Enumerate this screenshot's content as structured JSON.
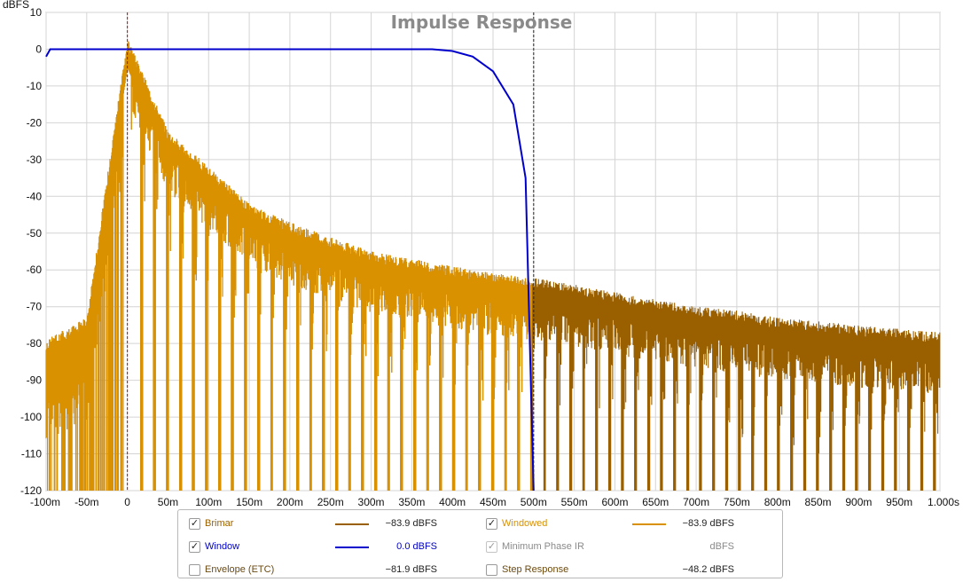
{
  "chart_data": {
    "type": "line",
    "title": "Impulse Response",
    "ylabel": "dBFS",
    "ylim": [
      -120,
      10
    ],
    "xlim": [
      -0.1,
      1.0
    ],
    "y_ticks": [
      "10",
      "0",
      "-10",
      "-20",
      "-30",
      "-40",
      "-50",
      "-60",
      "-70",
      "-80",
      "-90",
      "-100",
      "-110",
      "-120"
    ],
    "x_ticks": [
      "-100m",
      "-50m",
      "0",
      "50m",
      "100m",
      "150m",
      "200m",
      "250m",
      "300m",
      "350m",
      "400m",
      "450m",
      "500m",
      "550m",
      "600m",
      "650m",
      "700m",
      "750m",
      "800m",
      "850m",
      "900m",
      "950m",
      "1.000s"
    ],
    "grid": true,
    "markers": [
      {
        "x": 0.0,
        "color": "#cc0000",
        "style": "dashed"
      },
      {
        "x": 0.5,
        "color": "#222222",
        "style": "dashed"
      }
    ],
    "series": [
      {
        "name": "Brimar",
        "color": "#9a6000",
        "x": [
          -0.1,
          -0.05,
          0.0,
          0.05,
          0.1,
          0.15,
          0.2,
          0.25,
          0.3,
          0.35,
          0.4,
          0.45,
          0.5,
          0.55,
          0.6,
          0.65,
          0.7,
          0.75,
          0.8,
          0.85,
          0.9,
          0.95,
          1.0
        ],
        "values": [
          -82,
          -76,
          0,
          -25,
          -35,
          -45,
          -50,
          -54,
          -58,
          -60,
          -62,
          -64,
          -65,
          -67,
          -69,
          -71,
          -73,
          -74,
          -76,
          -77,
          -78,
          -79,
          -80
        ]
      },
      {
        "name": "Windowed",
        "color": "#d99100",
        "x": [
          -0.1,
          -0.05,
          0.0,
          0.05,
          0.1,
          0.15,
          0.2,
          0.25,
          0.3,
          0.35,
          0.4,
          0.45,
          0.5
        ],
        "values": [
          -82,
          -76,
          0,
          -25,
          -35,
          -45,
          -50,
          -54,
          -58,
          -60,
          -62,
          -64,
          -65
        ]
      },
      {
        "name": "Window",
        "color": "#0000cc",
        "x": [
          -0.1,
          -0.095,
          -0.09,
          0.0,
          0.1,
          0.2,
          0.3,
          0.375,
          0.4,
          0.425,
          0.45,
          0.475,
          0.49,
          0.5
        ],
        "values": [
          -2,
          0,
          0,
          0,
          0,
          0,
          0,
          0,
          -0.5,
          -2,
          -6,
          -15,
          -35,
          -120
        ]
      }
    ]
  },
  "legend": {
    "rows": [
      {
        "left": {
          "checked": true,
          "label": "Brimar",
          "label_color": "#9a6000",
          "line_color": "#9a6000",
          "value": "−83.9 dBFS",
          "disabled": false
        },
        "right": {
          "checked": true,
          "label": "Windowed",
          "label_color": "#d99100",
          "line_color": "#d99100",
          "value": "−83.9 dBFS",
          "disabled": false
        }
      },
      {
        "left": {
          "checked": true,
          "label": "Window",
          "label_color": "#0000cc",
          "line_color": "#0000cc",
          "value": "0.0 dBFS",
          "value_color": "#0000cc",
          "disabled": false
        },
        "right": {
          "checked": true,
          "label": "Minimum Phase IR",
          "label_color": "#8a8a8a",
          "line_color": "",
          "value": "dBFS",
          "value_color": "#8a8a8a",
          "disabled": true
        }
      },
      {
        "left": {
          "checked": false,
          "label": "Envelope (ETC)",
          "label_color": "#6b4a10",
          "line_color": "",
          "value": "−81.9 dBFS",
          "disabled": false
        },
        "right": {
          "checked": false,
          "label": "Step Response",
          "label_color": "#6b4a10",
          "line_color": "",
          "value": "−48.2 dBFS",
          "disabled": false
        }
      }
    ]
  }
}
